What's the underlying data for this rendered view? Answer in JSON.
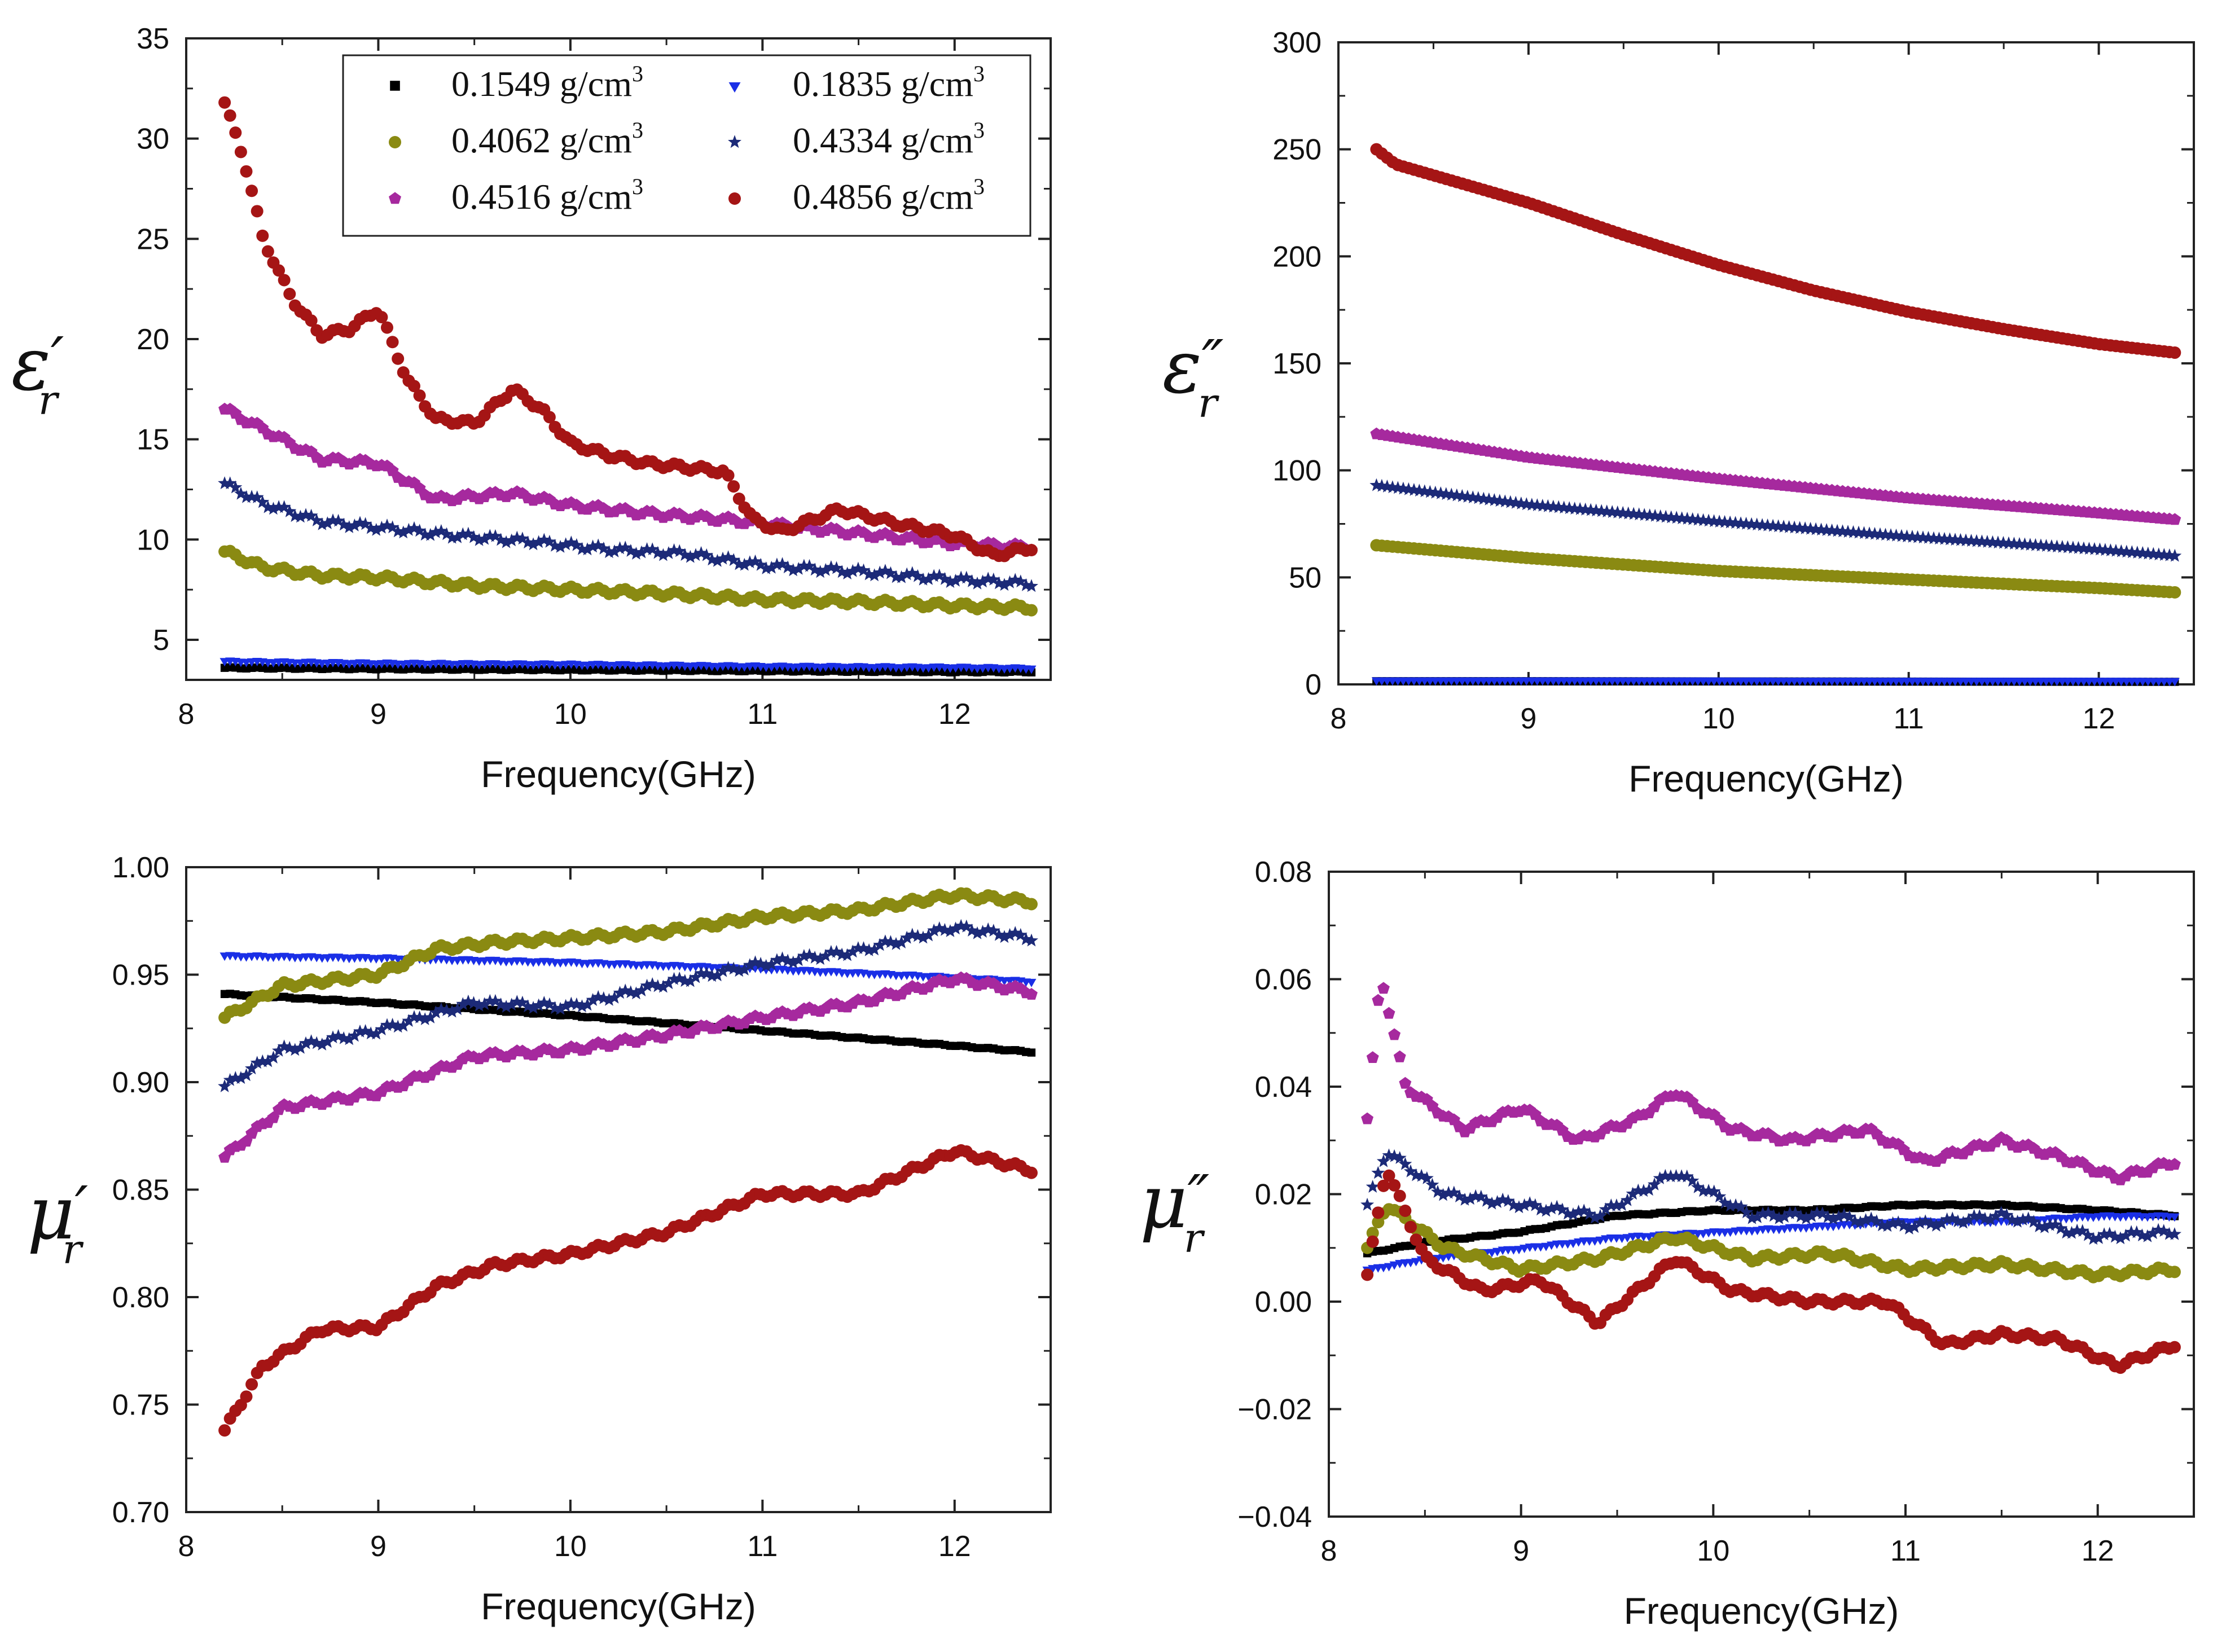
{
  "legend": {
    "entries": [
      {
        "value": "0.1549 g/cm",
        "unit_exp": "3",
        "marker": "square",
        "color": "#000000"
      },
      {
        "value": "0.1835 g/cm",
        "unit_exp": "3",
        "marker": "triangle-down",
        "color": "#1a2fe6"
      },
      {
        "value": "0.4062 g/cm",
        "unit_exp": "3",
        "marker": "circle",
        "color": "#8a8a12"
      },
      {
        "value": "0.4334 g/cm",
        "unit_exp": "3",
        "marker": "star",
        "color": "#1c2a78"
      },
      {
        "value": "0.4516 g/cm",
        "unit_exp": "3",
        "marker": "pentagon",
        "color": "#a6299e"
      },
      {
        "value": "0.4856 g/cm",
        "unit_exp": "3",
        "marker": "circle",
        "color": "#a51515"
      }
    ]
  },
  "chart_data": [
    {
      "type": "scatter",
      "ylabel_main": "ε",
      "ylabel_prime": "′",
      "ylabel_sub": "r",
      "xlabel": "Frequency(GHz)",
      "xlim": [
        8,
        12.5
      ],
      "ylim": [
        3,
        35
      ],
      "xticks": [
        "8",
        "9",
        "10",
        "11",
        "12"
      ],
      "xtick_values": [
        8,
        9,
        10,
        11,
        12
      ],
      "yticks": [
        "5",
        "10",
        "15",
        "20",
        "25",
        "30",
        "35"
      ],
      "ytick_values": [
        5,
        10,
        15,
        20,
        25,
        30,
        35
      ],
      "has_legend": true,
      "series": [
        {
          "name": "0.1549 g/cm3",
          "x": [
            8.2,
            9,
            10,
            11,
            12,
            12.4
          ],
          "y": [
            3.6,
            3.55,
            3.5,
            3.45,
            3.4,
            3.4
          ]
        },
        {
          "name": "0.1835 g/cm3",
          "x": [
            8.2,
            9,
            10,
            11,
            12,
            12.4
          ],
          "y": [
            3.95,
            3.85,
            3.8,
            3.7,
            3.65,
            3.6
          ]
        },
        {
          "name": "0.4062 g/cm3",
          "x": [
            8.2,
            8.4,
            8.7,
            9,
            9.5,
            10,
            10.5,
            11,
            11.5,
            12,
            12.4
          ],
          "y": [
            9.4,
            8.6,
            8.2,
            8.1,
            7.7,
            7.5,
            7.3,
            7.0,
            6.9,
            6.7,
            6.6
          ]
        },
        {
          "name": "0.4334 g/cm3",
          "x": [
            8.2,
            8.4,
            8.7,
            9,
            9.4,
            9.8,
            10.2,
            10.6,
            11,
            11.5,
            12,
            12.4
          ],
          "y": [
            12.8,
            11.8,
            10.9,
            10.6,
            10.2,
            9.9,
            9.5,
            9.3,
            8.7,
            8.4,
            8.0,
            7.8
          ]
        },
        {
          "name": "0.4516 g/cm3",
          "x": [
            8.2,
            8.4,
            8.7,
            9,
            9.3,
            9.7,
            10,
            10.4,
            10.8,
            11.2,
            11.6,
            12,
            12.4
          ],
          "y": [
            16.5,
            15.5,
            14.0,
            13.8,
            12.0,
            12.3,
            11.7,
            11.3,
            11.0,
            10.6,
            10.2,
            9.8,
            9.6
          ]
        },
        {
          "name": "0.4856 g/cm3",
          "x": [
            8.2,
            8.3,
            8.4,
            8.55,
            8.7,
            8.85,
            9,
            9.15,
            9.3,
            9.5,
            9.7,
            9.85,
            10,
            10.2,
            10.4,
            10.6,
            10.8,
            10.95,
            11.1,
            11.4,
            11.7,
            12,
            12.2,
            12.4
          ],
          "y": [
            31.8,
            29.0,
            25.0,
            22.0,
            20.2,
            20.5,
            21.5,
            18.0,
            16.0,
            15.8,
            17.5,
            16.5,
            14.8,
            14.2,
            13.8,
            13.6,
            13.4,
            11.0,
            10.4,
            11.5,
            10.8,
            10.2,
            9.2,
            9.6
          ]
        }
      ]
    },
    {
      "type": "scatter",
      "ylabel_main": "ε",
      "ylabel_prime": "″",
      "ylabel_sub": "r",
      "xlabel": "Frequency(GHz)",
      "xlim": [
        8,
        12.5
      ],
      "ylim": [
        0,
        300
      ],
      "xticks": [
        "8",
        "9",
        "10",
        "11",
        "12"
      ],
      "xtick_values": [
        8,
        9,
        10,
        11,
        12
      ],
      "yticks": [
        "0",
        "50",
        "100",
        "150",
        "200",
        "250",
        "300"
      ],
      "ytick_values": [
        0,
        50,
        100,
        150,
        200,
        250,
        300
      ],
      "has_legend": false,
      "series": [
        {
          "name": "0.1549 g/cm3",
          "x": [
            8.2,
            9,
            10,
            11,
            12,
            12.4
          ],
          "y": [
            1.5,
            1.5,
            1.4,
            1.3,
            1.2,
            1.2
          ]
        },
        {
          "name": "0.1835 g/cm3",
          "x": [
            8.2,
            9,
            10,
            11,
            12,
            12.4
          ],
          "y": [
            2.0,
            2.0,
            1.9,
            1.8,
            1.8,
            1.7
          ]
        },
        {
          "name": "0.4062 g/cm3",
          "x": [
            8.2,
            9,
            10,
            11,
            12,
            12.4
          ],
          "y": [
            65,
            59,
            53,
            49,
            45,
            43
          ]
        },
        {
          "name": "0.4334 g/cm3",
          "x": [
            8.2,
            9,
            10,
            11,
            12,
            12.4
          ],
          "y": [
            93,
            84,
            76,
            69,
            63,
            60
          ]
        },
        {
          "name": "0.4516 g/cm3",
          "x": [
            8.2,
            9,
            10,
            11,
            12,
            12.4
          ],
          "y": [
            117,
            106,
            96,
            87,
            80,
            77
          ]
        },
        {
          "name": "0.4856 g/cm3",
          "x": [
            8.2,
            8.3,
            9,
            9.5,
            10,
            10.5,
            11,
            11.5,
            12,
            12.4
          ],
          "y": [
            250,
            243,
            225,
            210,
            196,
            184,
            174,
            166,
            159,
            155
          ]
        }
      ]
    },
    {
      "type": "scatter",
      "ylabel_main": "μ",
      "ylabel_prime": "′",
      "ylabel_sub": "r",
      "xlabel": "Frequency(GHz)",
      "xlim": [
        8,
        12.5
      ],
      "ylim": [
        0.7,
        1.0
      ],
      "xticks": [
        "8",
        "9",
        "10",
        "11",
        "12"
      ],
      "xtick_values": [
        8,
        9,
        10,
        11,
        12
      ],
      "yticks": [
        "0.70",
        "0.75",
        "0.80",
        "0.85",
        "0.90",
        "0.95",
        "1.00"
      ],
      "ytick_values": [
        0.7,
        0.75,
        0.8,
        0.85,
        0.9,
        0.95,
        1.0
      ],
      "has_legend": false,
      "series": [
        {
          "name": "0.1549 g/cm3",
          "x": [
            8.2,
            9,
            10,
            11,
            12,
            12.4
          ],
          "y": [
            0.941,
            0.937,
            0.931,
            0.924,
            0.917,
            0.914
          ]
        },
        {
          "name": "0.1835 g/cm3",
          "x": [
            8.2,
            9,
            10,
            11,
            12,
            12.4
          ],
          "y": [
            0.959,
            0.958,
            0.956,
            0.953,
            0.949,
            0.947
          ]
        },
        {
          "name": "0.4062 g/cm3",
          "x": [
            8.2,
            8.5,
            9,
            9.3,
            9.6,
            10,
            10.5,
            11,
            11.5,
            12,
            12.4
          ],
          "y": [
            0.93,
            0.945,
            0.95,
            0.962,
            0.965,
            0.967,
            0.97,
            0.977,
            0.98,
            0.987,
            0.984
          ]
        },
        {
          "name": "0.4334 g/cm3",
          "x": [
            8.2,
            8.5,
            9,
            9.5,
            10,
            10.5,
            11,
            11.5,
            12,
            12.4
          ],
          "y": [
            0.898,
            0.915,
            0.924,
            0.937,
            0.935,
            0.946,
            0.955,
            0.961,
            0.972,
            0.967
          ]
        },
        {
          "name": "0.4516 g/cm3",
          "x": [
            8.2,
            8.5,
            9,
            9.5,
            10,
            10.5,
            11,
            11.5,
            12,
            12.4
          ],
          "y": [
            0.865,
            0.888,
            0.895,
            0.912,
            0.915,
            0.922,
            0.93,
            0.937,
            0.948,
            0.942
          ]
        },
        {
          "name": "0.4856 g/cm3",
          "x": [
            8.2,
            8.4,
            8.7,
            9,
            9.3,
            9.6,
            10,
            10.5,
            11,
            11.5,
            12,
            12.4
          ],
          "y": [
            0.738,
            0.768,
            0.785,
            0.786,
            0.805,
            0.815,
            0.82,
            0.83,
            0.848,
            0.848,
            0.868,
            0.859
          ]
        }
      ]
    },
    {
      "type": "scatter",
      "ylabel_main": "μ",
      "ylabel_prime": "″",
      "ylabel_sub": "r",
      "xlabel": "Frequency(GHz)",
      "xlim": [
        8,
        12.5
      ],
      "ylim": [
        -0.04,
        0.08
      ],
      "xticks": [
        "8",
        "9",
        "10",
        "11",
        "12"
      ],
      "xtick_values": [
        8,
        9,
        10,
        11,
        12
      ],
      "yticks": [
        "−0.04",
        "−0.02",
        "0.00",
        "0.02",
        "0.04",
        "0.06",
        "0.08"
      ],
      "ytick_values": [
        -0.04,
        -0.02,
        0.0,
        0.02,
        0.04,
        0.06,
        0.08
      ],
      "has_legend": false,
      "series": [
        {
          "name": "0.1549 g/cm3",
          "x": [
            8.2,
            8.5,
            9,
            9.5,
            10,
            10.5,
            11,
            11.5,
            12,
            12.4
          ],
          "y": [
            0.009,
            0.011,
            0.013,
            0.016,
            0.017,
            0.017,
            0.018,
            0.018,
            0.017,
            0.016
          ]
        },
        {
          "name": "0.1835 g/cm3",
          "x": [
            8.2,
            8.5,
            9,
            9.5,
            10,
            10.5,
            11,
            11.5,
            12,
            12.4
          ],
          "y": [
            0.006,
            0.008,
            0.01,
            0.012,
            0.013,
            0.014,
            0.015,
            0.015,
            0.016,
            0.016
          ]
        },
        {
          "name": "0.4062 g/cm3",
          "x": [
            8.2,
            8.3,
            8.6,
            9,
            9.4,
            9.8,
            10.2,
            10.6,
            11,
            11.5,
            12,
            12.4
          ],
          "y": [
            0.01,
            0.018,
            0.01,
            0.006,
            0.008,
            0.012,
            0.008,
            0.009,
            0.006,
            0.007,
            0.005,
            0.006
          ]
        },
        {
          "name": "0.4334 g/cm3",
          "x": [
            8.2,
            8.3,
            8.6,
            9,
            9.4,
            9.8,
            10.2,
            10.6,
            11,
            11.5,
            12,
            12.4
          ],
          "y": [
            0.018,
            0.028,
            0.02,
            0.018,
            0.016,
            0.024,
            0.016,
            0.016,
            0.014,
            0.016,
            0.012,
            0.013
          ]
        },
        {
          "name": "0.4516 g/cm3",
          "x": [
            8.2,
            8.27,
            8.4,
            8.7,
            9,
            9.3,
            9.6,
            9.8,
            10.1,
            10.4,
            10.8,
            11.1,
            11.5,
            11.8,
            12.1,
            12.4
          ],
          "y": [
            0.034,
            0.061,
            0.04,
            0.032,
            0.036,
            0.03,
            0.034,
            0.039,
            0.032,
            0.03,
            0.032,
            0.026,
            0.03,
            0.027,
            0.023,
            0.026
          ]
        },
        {
          "name": "0.4856 g/cm3",
          "x": [
            8.2,
            8.3,
            8.5,
            8.8,
            9.1,
            9.4,
            9.8,
            10.1,
            10.5,
            10.9,
            11.2,
            11.5,
            11.8,
            12.1,
            12.4
          ],
          "y": [
            0.005,
            0.025,
            0.008,
            0.002,
            0.004,
            -0.004,
            0.008,
            0.002,
            0.0,
            0.0,
            -0.008,
            -0.006,
            -0.007,
            -0.012,
            -0.008
          ]
        }
      ]
    }
  ]
}
